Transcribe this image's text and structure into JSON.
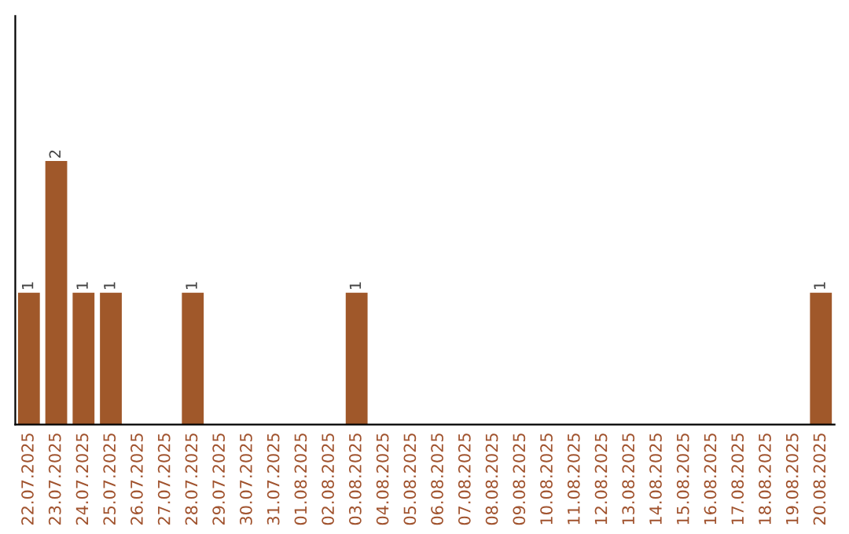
{
  "chart_data": {
    "type": "bar",
    "categories": [
      "22.07.2025",
      "23.07.2025",
      "24.07.2025",
      "25.07.2025",
      "26.07.2025",
      "27.07.2025",
      "28.07.2025",
      "29.07.2025",
      "30.07.2025",
      "31.07.2025",
      "01.08.2025",
      "02.08.2025",
      "03.08.2025",
      "04.08.2025",
      "05.08.2025",
      "06.08.2025",
      "07.08.2025",
      "08.08.2025",
      "09.08.2025",
      "10.08.2025",
      "11.08.2025",
      "12.08.2025",
      "13.08.2025",
      "14.08.2025",
      "15.08.2025",
      "16.08.2025",
      "17.08.2025",
      "18.08.2025",
      "19.08.2025",
      "20.08.2025"
    ],
    "values": [
      1,
      2,
      1,
      1,
      0,
      0,
      1,
      0,
      0,
      0,
      0,
      0,
      1,
      0,
      0,
      0,
      0,
      0,
      0,
      0,
      0,
      0,
      0,
      0,
      0,
      0,
      0,
      0,
      0,
      1
    ],
    "value_labels": [
      "1",
      "2",
      "1",
      "1",
      null,
      null,
      "1",
      null,
      null,
      null,
      null,
      null,
      "1",
      null,
      null,
      null,
      null,
      null,
      null,
      null,
      null,
      null,
      null,
      null,
      null,
      null,
      null,
      null,
      null,
      "1"
    ],
    "color": "#a0582a",
    "tick_labels": "x",
    "grid": false,
    "legend": false
  }
}
